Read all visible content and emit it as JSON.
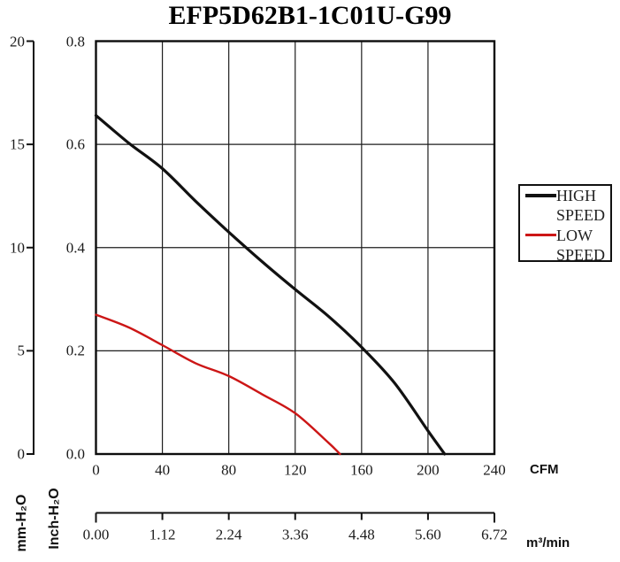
{
  "chart_data": {
    "type": "line",
    "title": "EFP5D62B1-1C01U-G99",
    "grid": true,
    "legend_position": "right",
    "x_axis": {
      "label": "CFM",
      "ticks": [
        "0",
        "40",
        "80",
        "120",
        "160",
        "200",
        "240"
      ],
      "range": [
        0,
        240
      ]
    },
    "x_axis_secondary": {
      "label": "m³/min",
      "ticks": [
        "0.00",
        "1.12",
        "2.24",
        "3.36",
        "4.48",
        "5.60",
        "6.72"
      ],
      "range": [
        0,
        6.72
      ]
    },
    "y_axis_primary": {
      "label": "mm-H₂O",
      "ticks": [
        "20",
        "15",
        "10",
        "5",
        "0"
      ],
      "range": [
        0,
        20
      ]
    },
    "y_axis_secondary": {
      "label": "Inch-H₂O",
      "ticks": [
        "0.8",
        "0.6",
        "0.4",
        "0.2",
        "0.0"
      ],
      "range": [
        0,
        0.8
      ]
    },
    "series": [
      {
        "name": "HIGH SPEED",
        "color": "#111111",
        "units": "CFM vs Inch-H2O",
        "points": [
          [
            0,
            0.656
          ],
          [
            20,
            0.602
          ],
          [
            40,
            0.553
          ],
          [
            60,
            0.49
          ],
          [
            80,
            0.43
          ],
          [
            100,
            0.373
          ],
          [
            120,
            0.319
          ],
          [
            140,
            0.267
          ],
          [
            160,
            0.207
          ],
          [
            180,
            0.137
          ],
          [
            200,
            0.045
          ],
          [
            210,
            0
          ]
        ]
      },
      {
        "name": "LOW SPEED",
        "color": "#cc1616",
        "units": "CFM vs Inch-H2O",
        "points": [
          [
            0,
            0.27
          ],
          [
            20,
            0.245
          ],
          [
            40,
            0.211
          ],
          [
            60,
            0.176
          ],
          [
            80,
            0.151
          ],
          [
            100,
            0.116
          ],
          [
            120,
            0.079
          ],
          [
            140,
            0.022
          ],
          [
            147,
            0
          ]
        ]
      }
    ],
    "legend": {
      "entries": [
        {
          "lines": [
            "HIGH",
            "SPEED"
          ],
          "color": "#111111"
        },
        {
          "lines": [
            "LOW",
            "SPEED"
          ],
          "color": "#cc1616"
        }
      ]
    }
  }
}
